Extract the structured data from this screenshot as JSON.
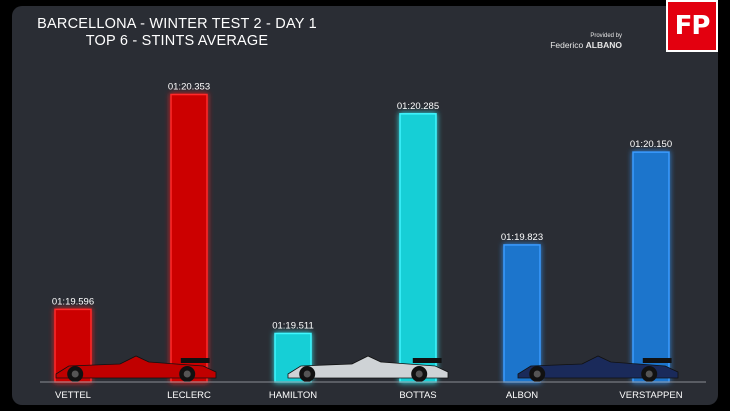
{
  "header": {
    "title_line1": "BARCELLONA - WINTER TEST 2 - DAY 1",
    "title_line2": "TOP 6 - STINTS AVERAGE"
  },
  "credit": {
    "provided_by": "Provided by",
    "first_name": "Federico",
    "last_name": "ALBANO"
  },
  "logo": {
    "text": "FP"
  },
  "car_icons": [
    "ferrari-car-icon",
    "mercedes-car-icon",
    "redbull-car-icon"
  ],
  "chart_data": {
    "type": "bar",
    "title": "",
    "xlabel": "",
    "ylabel": "",
    "categories": [
      "VETTEL",
      "LECLERC",
      "HAMILTON",
      "BOTTAS",
      "ALBON",
      "VERSTAPPEN"
    ],
    "values_seconds": [
      79.596,
      80.353,
      79.511,
      80.285,
      79.823,
      80.15
    ],
    "data_labels": [
      "01:19.596",
      "01:20.353",
      "01:19.511",
      "01:20.285",
      "01:19.823",
      "01:20.150"
    ],
    "colors": [
      "#cc0000",
      "#cc0000",
      "#17cfd6",
      "#17cfd6",
      "#1f75cc",
      "#1f75cc"
    ],
    "glow_colors": [
      "#ff2a2a",
      "#ff2a2a",
      "#3ff6ff",
      "#3ff6ff",
      "#3a9bff",
      "#3a9bff"
    ],
    "ylim": [
      79.34,
      80.39
    ],
    "grid": false,
    "legend": "none"
  }
}
